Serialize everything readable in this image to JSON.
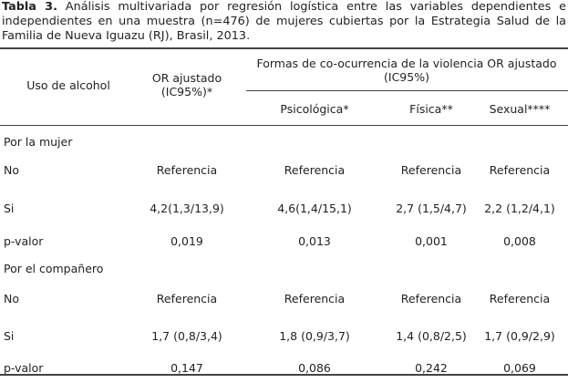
{
  "caption": {
    "label": "Tabla 3.",
    "text": "Análisis multivariada por regresión logística entre las variables dependientes e independientes en una muestra (n=476) de mujeres cubiertas por la Estrategia Salud de la Familia de Nueva Iguazu (RJ), Brasil, 2013."
  },
  "table": {
    "header": {
      "variable": "Uso de alcohol",
      "or": "OR ajustado (IC95%)*",
      "group": "Formas de co-ocurrencia de la violencia OR ajustado (IC95%)",
      "columns": [
        "Psicológica*",
        "Física**",
        "Sexual****"
      ]
    },
    "sections": [
      {
        "title": "Por la mujer",
        "rows": [
          [
            "No",
            "Referencia",
            "Referencia",
            "Referencia",
            "Referencia"
          ],
          [
            "Si",
            "4,2(1,3/13,9)",
            "4,6(1,4/15,1)",
            "2,7 (1,5/4,7)",
            "2,2 (1,2/4,1)"
          ],
          [
            "p-valor",
            "0,019",
            "0,013",
            "0,001",
            "0,008"
          ]
        ]
      },
      {
        "title": "Por el compañero",
        "rows": [
          [
            "No",
            "Referencia",
            "Referencia",
            "Referencia",
            "Referencia"
          ],
          [
            "Si",
            "1,7 (0,8/3,4)",
            "1,8 (0,9/3,7)",
            "1,4 (0,8/2,5)",
            "1,7 (0,9/2,9)"
          ],
          [
            "p-valor",
            "0,147",
            "0,086",
            "0,242",
            "0,069"
          ]
        ]
      }
    ]
  }
}
